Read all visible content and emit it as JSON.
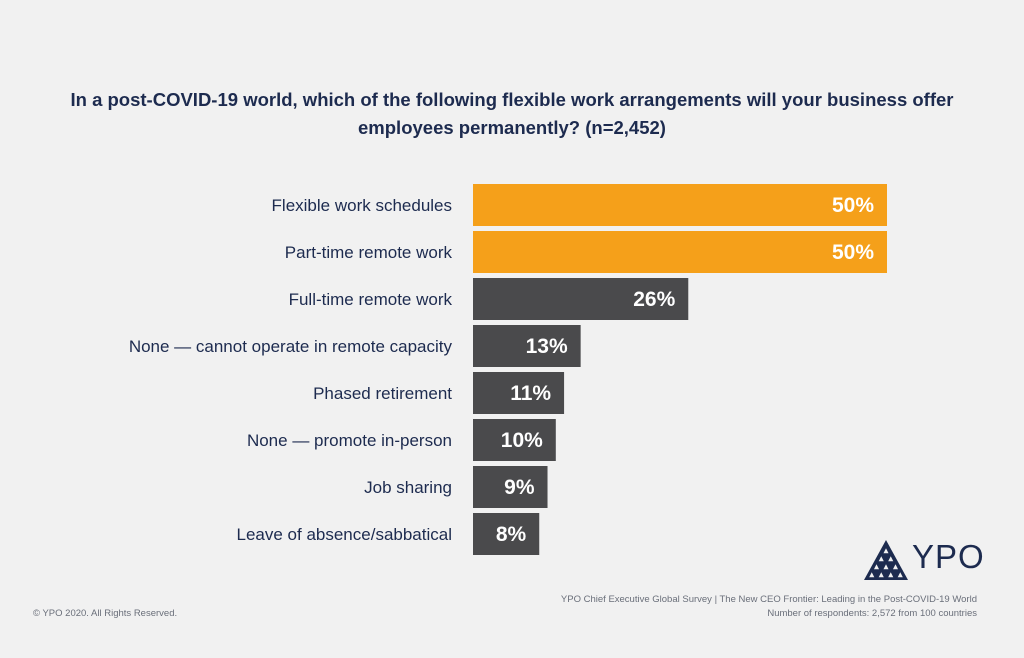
{
  "chart_data": {
    "type": "bar",
    "orientation": "horizontal",
    "title": "In a post-COVID-19 world, which of the following flexible work arrangements will your business offer employees permanently? (n=2,452)",
    "categories": [
      "Flexible work schedules",
      "Part-time remote work",
      "Full-time remote work",
      "None — cannot operate in remote capacity",
      "Phased retirement",
      "None — promote in-person",
      "Job sharing",
      "Leave of absence/sabbatical"
    ],
    "values": [
      50,
      50,
      26,
      13,
      11,
      10,
      9,
      8
    ],
    "value_labels": [
      "50%",
      "50%",
      "26%",
      "13%",
      "11%",
      "10%",
      "9%",
      "8%"
    ],
    "colors": [
      "#f5a01a",
      "#f5a01a",
      "#4a4a4c",
      "#4a4a4c",
      "#4a4a4c",
      "#4a4a4c",
      "#4a4a4c",
      "#4a4a4c"
    ],
    "xlim": [
      0,
      50
    ],
    "grid": false,
    "legend": "none"
  },
  "logo": {
    "text": "YPO",
    "icon": "ypo-triangle-icon",
    "color": "#1d2b4f"
  },
  "footer": {
    "source": "YPO Chief Executive Global Survey | The New CEO Frontier: Leading in the Post-COVID-19 World",
    "respondents": "Number of respondents: 2,572 from 100 countries",
    "copyright": "© YPO 2020. All Rights Reserved."
  }
}
